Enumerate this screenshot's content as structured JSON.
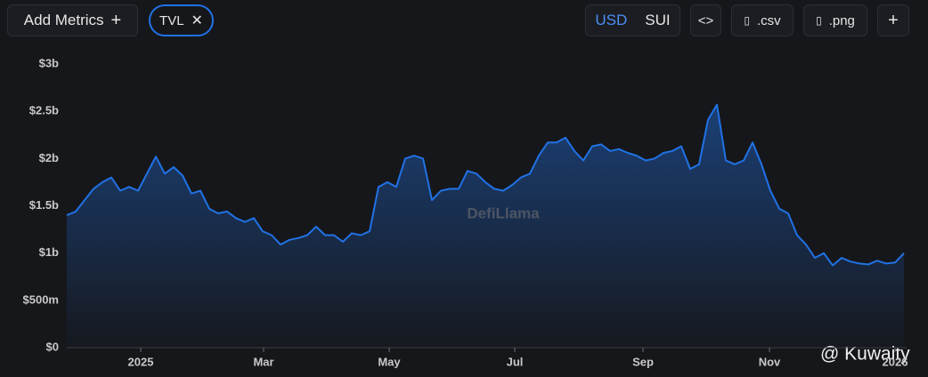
{
  "toolbar": {
    "add_metrics": "Add Metrics",
    "metric": "TVL",
    "currencies": [
      "USD",
      "SUI"
    ],
    "embed": "<>",
    "csv": ".csv",
    "png": ".png"
  },
  "chart_data": {
    "type": "area",
    "series": [
      {
        "name": "TVL",
        "color": "#2172e5",
        "values": [
          1.4,
          1.44,
          1.56,
          1.68,
          1.75,
          1.8,
          1.66,
          1.7,
          1.66,
          1.84,
          2.02,
          1.84,
          1.91,
          1.82,
          1.63,
          1.66,
          1.47,
          1.42,
          1.44,
          1.37,
          1.33,
          1.37,
          1.23,
          1.19,
          1.09,
          1.14,
          1.16,
          1.19,
          1.28,
          1.19,
          1.19,
          1.12,
          1.21,
          1.19,
          1.23,
          1.7,
          1.75,
          1.7,
          2.0,
          2.03,
          2.0,
          1.56,
          1.66,
          1.68,
          1.68,
          1.87,
          1.84,
          1.75,
          1.68,
          1.66,
          1.72,
          1.8,
          1.84,
          2.03,
          2.17,
          2.17,
          2.22,
          2.08,
          1.98,
          2.13,
          2.15,
          2.08,
          2.1,
          2.06,
          2.03,
          1.98,
          2.0,
          2.06,
          2.08,
          2.13,
          1.89,
          1.94,
          2.41,
          2.57,
          1.98,
          1.94,
          1.98,
          2.17,
          1.94,
          1.66,
          1.47,
          1.42,
          1.19,
          1.09,
          0.95,
          1.0,
          0.87,
          0.95,
          0.91,
          0.89,
          0.88,
          0.92,
          0.89,
          0.9,
          1.0
        ]
      }
    ],
    "xlim": [
      0,
      94.3
    ],
    "xticks": [
      {
        "value": 8.3,
        "label": "2025"
      },
      {
        "value": 22.1,
        "label": "Mar"
      },
      {
        "value": 36.2,
        "label": "May"
      },
      {
        "value": 50.3,
        "label": "Jul"
      },
      {
        "value": 64.7,
        "label": "Sep"
      },
      {
        "value": 78.9,
        "label": "Nov"
      },
      {
        "value": 93.0,
        "label": "2026"
      }
    ],
    "ylim": [
      0,
      3
    ],
    "yticks": [
      {
        "value": 0,
        "label": "$0"
      },
      {
        "value": 0.5,
        "label": "$500m"
      },
      {
        "value": 1,
        "label": "$1b"
      },
      {
        "value": 1.5,
        "label": "$1.5b"
      },
      {
        "value": 2,
        "label": "$2b"
      },
      {
        "value": 2.5,
        "label": "$2.5b"
      },
      {
        "value": 3,
        "label": "$3b"
      }
    ],
    "grid": false,
    "watermarks": [
      "DefiLlama",
      "@ Kuwaity"
    ]
  }
}
